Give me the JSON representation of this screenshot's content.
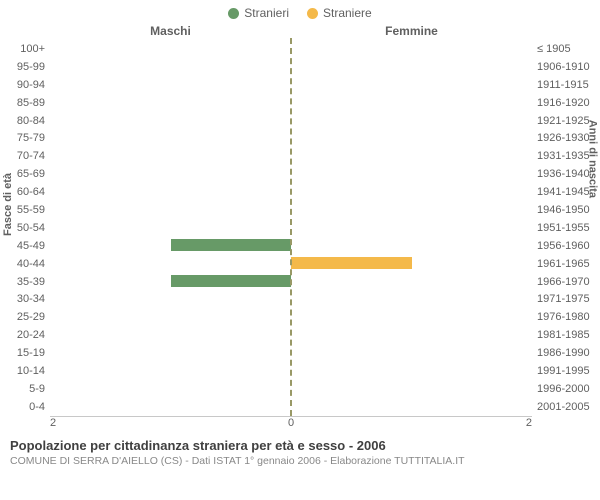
{
  "chart": {
    "type": "population-pyramid",
    "legend": [
      {
        "label": "Stranieri",
        "color": "#679a67"
      },
      {
        "label": "Straniere",
        "color": "#f4b94a"
      }
    ],
    "column_left": "Maschi",
    "column_right": "Femmine",
    "yaxis_left_title": "Fasce di età",
    "yaxis_right_title": "Anni di nascita",
    "age_labels": [
      "100+",
      "95-99",
      "90-94",
      "85-89",
      "80-84",
      "75-79",
      "70-74",
      "65-69",
      "60-64",
      "55-59",
      "50-54",
      "45-49",
      "40-44",
      "35-39",
      "30-34",
      "25-29",
      "20-24",
      "15-19",
      "10-14",
      "5-9",
      "0-4"
    ],
    "birth_labels": [
      "≤ 1905",
      "1906-1910",
      "1911-1915",
      "1916-1920",
      "1921-1925",
      "1926-1930",
      "1931-1935",
      "1936-1940",
      "1941-1945",
      "1946-1950",
      "1951-1955",
      "1956-1960",
      "1961-1965",
      "1966-1970",
      "1971-1975",
      "1976-1980",
      "1981-1985",
      "1986-1990",
      "1991-1995",
      "1996-2000",
      "2001-2005"
    ],
    "male_values": [
      0,
      0,
      0,
      0,
      0,
      0,
      0,
      0,
      0,
      0,
      0,
      1,
      0,
      1,
      0,
      0,
      0,
      0,
      0,
      0,
      0
    ],
    "female_values": [
      0,
      0,
      0,
      0,
      0,
      0,
      0,
      0,
      0,
      0,
      0,
      0,
      1,
      0,
      0,
      0,
      0,
      0,
      0,
      0,
      0
    ],
    "male_color": "#679a67",
    "female_color": "#f4b94a",
    "xmax": 2,
    "x_ticks": [
      "2",
      "0",
      "2"
    ],
    "background_color": "#ffffff",
    "center_line_color": "#999966",
    "tick_font_size": 11,
    "label_color": "#606060"
  },
  "footer": {
    "title": "Popolazione per cittadinanza straniera per età e sesso - 2006",
    "subtitle": "COMUNE DI SERRA D'AIELLO (CS) - Dati ISTAT 1° gennaio 2006 - Elaborazione TUTTITALIA.IT"
  }
}
